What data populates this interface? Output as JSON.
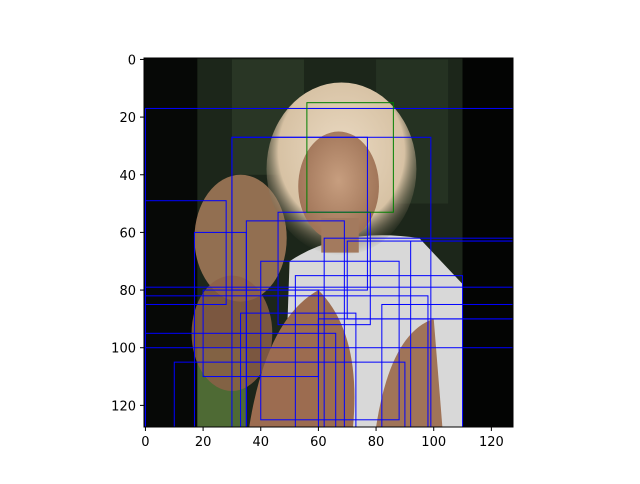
{
  "chart_data": {
    "type": "heatmap",
    "title": "",
    "xlabel": "",
    "ylabel": "",
    "xlim": [
      -0.5,
      127.5
    ],
    "ylim": [
      127.5,
      -0.5
    ],
    "xticks": [
      0,
      20,
      40,
      60,
      80,
      100,
      120
    ],
    "yticks": [
      0,
      20,
      40,
      60,
      80,
      100,
      120
    ],
    "image": {
      "description_shown": "photo",
      "background_color": "#060806",
      "band_color": "#1c261a",
      "band_x_range": [
        18,
        110
      ],
      "face_ellipse": {
        "cx": 68,
        "cy": 44,
        "rx": 20,
        "ry": 26
      },
      "hair_color": "#e8dcc6",
      "skin_color": "#b48a6c",
      "shirt_color": "#d8d8d8"
    },
    "box_colors": {
      "primary": "#0000ff",
      "face": "#008000"
    },
    "boxes_face": [
      {
        "x1": 56,
        "y1": 15,
        "x2": 86,
        "y2": 53
      }
    ],
    "boxes": [
      {
        "x1": 0,
        "y1": 17,
        "x2": 127.5,
        "y2": 127.5
      },
      {
        "x1": 30,
        "y1": 27,
        "x2": 99,
        "y2": 127.5
      },
      {
        "x1": 30,
        "y1": 27,
        "x2": 77,
        "y2": 80
      },
      {
        "x1": 0,
        "y1": 49,
        "x2": 28,
        "y2": 85
      },
      {
        "x1": 17,
        "y1": 60,
        "x2": 35,
        "y2": 127.5
      },
      {
        "x1": 35,
        "y1": 56,
        "x2": 69,
        "y2": 127.5
      },
      {
        "x1": 46,
        "y1": 53,
        "x2": 78,
        "y2": 92
      },
      {
        "x1": 62,
        "y1": 62,
        "x2": 127.5,
        "y2": 127.5
      },
      {
        "x1": 70,
        "y1": 63,
        "x2": 127.5,
        "y2": 90
      },
      {
        "x1": 0,
        "y1": 79,
        "x2": 127.5,
        "y2": 100
      },
      {
        "x1": 0,
        "y1": 82,
        "x2": 98,
        "y2": 127.5
      },
      {
        "x1": 20,
        "y1": 80,
        "x2": 60,
        "y2": 110
      },
      {
        "x1": 40,
        "y1": 70,
        "x2": 88,
        "y2": 125
      },
      {
        "x1": 52,
        "y1": 75,
        "x2": 110,
        "y2": 127.5
      },
      {
        "x1": 0,
        "y1": 95,
        "x2": 66,
        "y2": 127.5
      },
      {
        "x1": 60,
        "y1": 90,
        "x2": 127.5,
        "y2": 127.5
      },
      {
        "x1": 82,
        "y1": 85,
        "x2": 127.5,
        "y2": 127.5
      },
      {
        "x1": 10,
        "y1": 105,
        "x2": 90,
        "y2": 127.5
      },
      {
        "x1": 33,
        "y1": 88,
        "x2": 73,
        "y2": 127.5
      },
      {
        "x1": 92,
        "y1": 63,
        "x2": 127.5,
        "y2": 127.5
      }
    ]
  }
}
